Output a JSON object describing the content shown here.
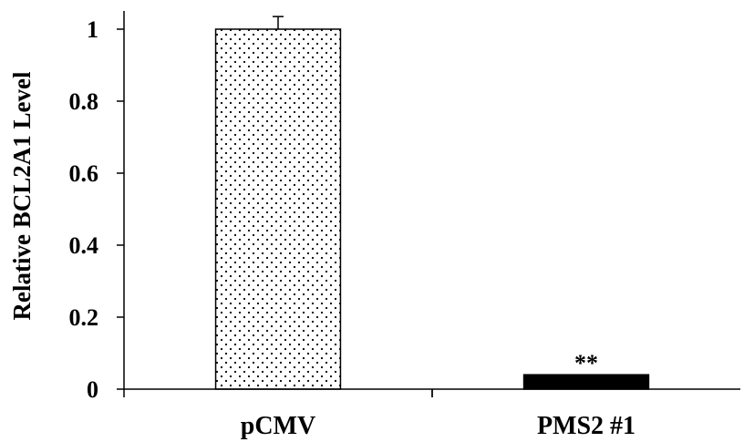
{
  "chart_data": {
    "type": "bar",
    "categories": [
      "pCMV",
      "PMS2 #1"
    ],
    "values": [
      1.0,
      0.04
    ],
    "errors": [
      0.035,
      0.002
    ],
    "fills": [
      "dotted",
      "#000000"
    ],
    "ylabel": "Relative BCL2A1 Level",
    "ylim": [
      0,
      1.0
    ],
    "yticks": [
      0,
      0.2,
      0.4,
      0.6,
      0.8,
      1
    ],
    "ytick_labels": [
      "0",
      "0.2",
      "0.4",
      "0.6",
      "0.8",
      "1"
    ],
    "annotations": [
      {
        "category": "PMS2 #1",
        "text": "**"
      }
    ],
    "grid": false
  }
}
